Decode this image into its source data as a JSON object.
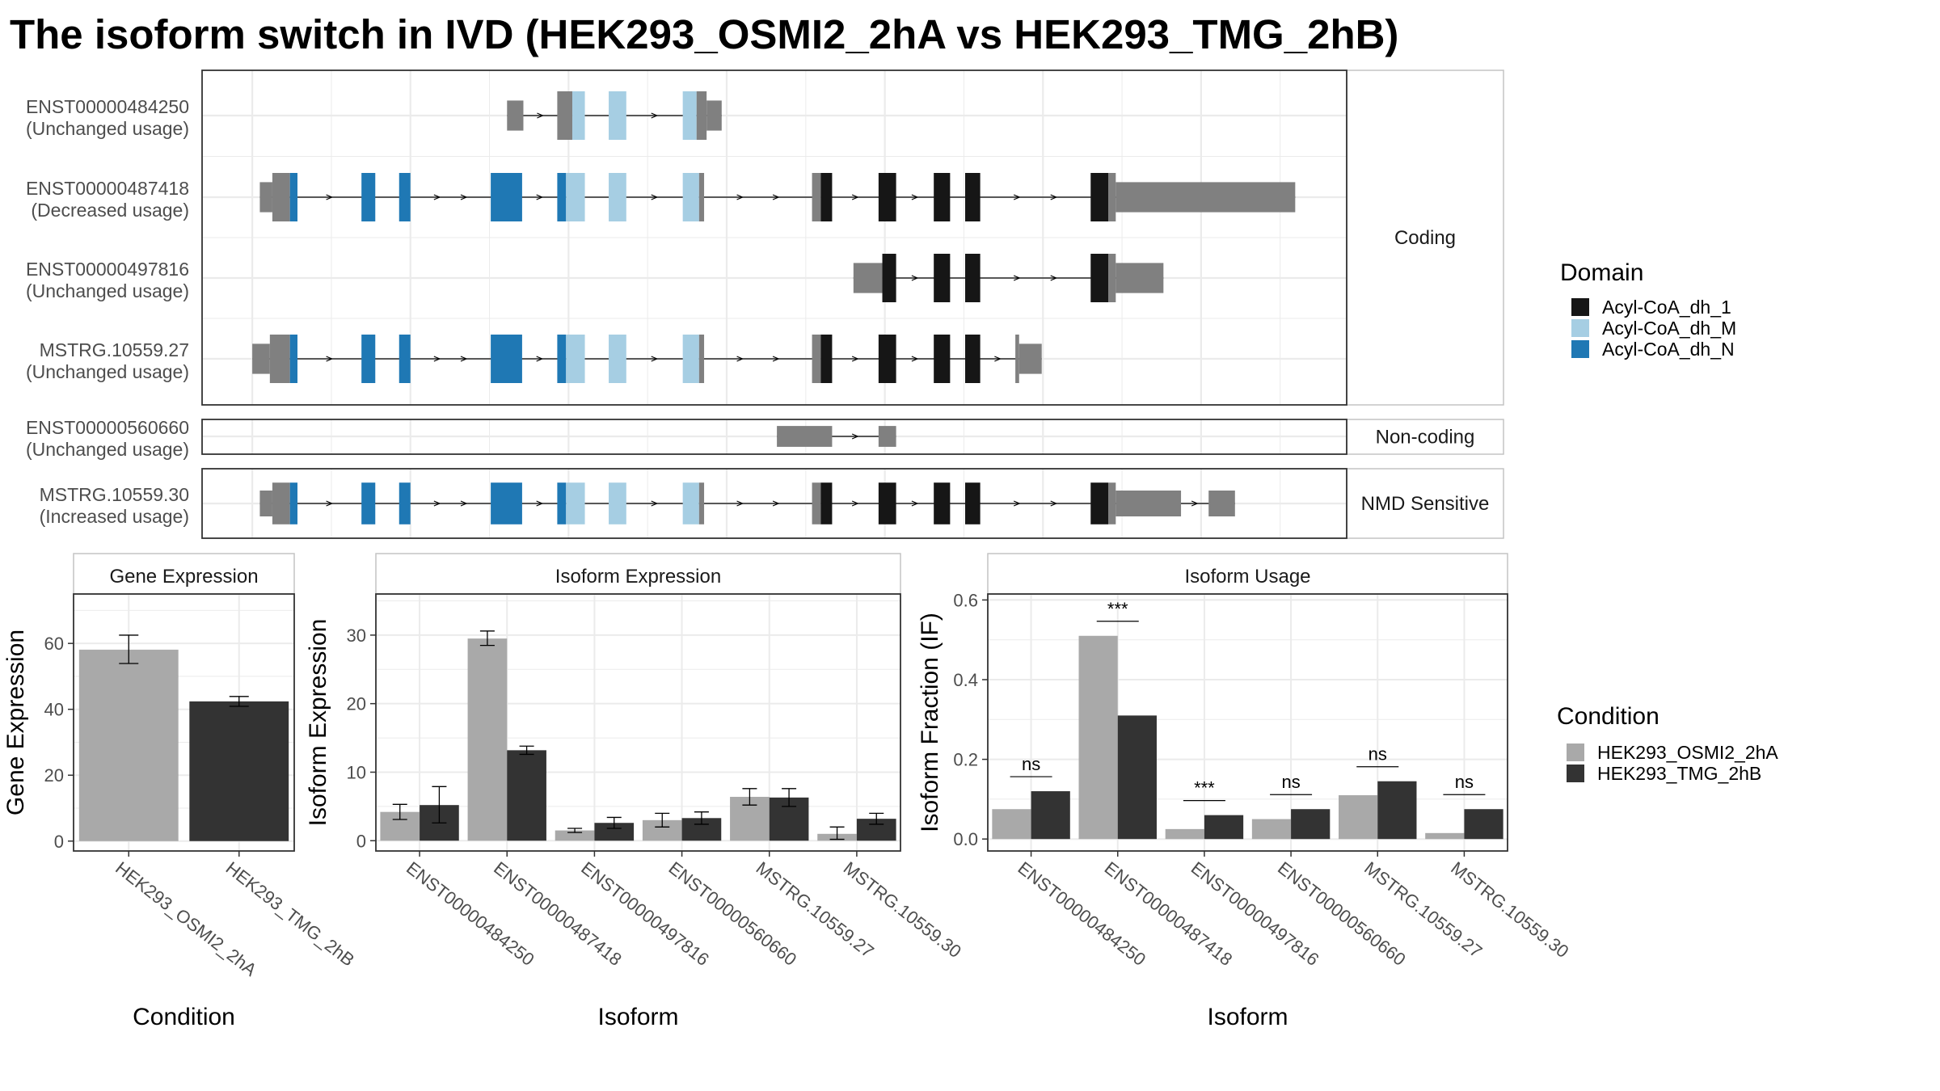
{
  "title": "The isoform switch in IVD (HEK293_OSMI2_2hA vs HEK293_TMG_2hB)",
  "colors": {
    "utr": "#808080",
    "Acyl-CoA_dh_1": "#161616",
    "Acyl-CoA_dh_M": "#a6cee3",
    "Acyl-CoA_dh_N": "#1f78b4",
    "cond1": "#a9a9a9",
    "cond2": "#333333",
    "grid": "#ebebeb",
    "panel_border": "#333333",
    "strip_border": "#c4c4c4"
  },
  "structure": {
    "groups": [
      {
        "label": "Coding",
        "transcripts": [
          {
            "id": "ENST00000484250",
            "status": "(Unchanged usage)",
            "segments": [
              [
                405,
                418,
                "utr"
              ],
              [
                445,
                457,
                "utr"
              ],
              [
                457,
                467,
                "Acyl-CoA_dh_M"
              ],
              [
                486,
                500,
                "Acyl-CoA_dh_M"
              ],
              [
                545,
                556,
                "Acyl-CoA_dh_M"
              ],
              [
                556,
                564,
                "utr"
              ],
              [
                564,
                576,
                "utr"
              ]
            ],
            "thin": [
              [
                405,
                418
              ],
              [
                564,
                576
              ]
            ]
          },
          {
            "id": "ENST00000487418",
            "status": "(Decreased usage)",
            "segments": [
              [
                208,
                218,
                "utr"
              ],
              [
                218,
                232,
                "utr"
              ],
              [
                232,
                238,
                "Acyl-CoA_dh_N"
              ],
              [
                289,
                300,
                "Acyl-CoA_dh_N"
              ],
              [
                319,
                328,
                "Acyl-CoA_dh_N"
              ],
              [
                392,
                417,
                "Acyl-CoA_dh_N"
              ],
              [
                445,
                452,
                "Acyl-CoA_dh_N"
              ],
              [
                452,
                467,
                "Acyl-CoA_dh_M"
              ],
              [
                486,
                500,
                "Acyl-CoA_dh_M"
              ],
              [
                545,
                558,
                "Acyl-CoA_dh_M"
              ],
              [
                558,
                562,
                "utr"
              ],
              [
                648,
                655,
                "utr"
              ],
              [
                655,
                664,
                "Acyl-CoA_dh_1"
              ],
              [
                701,
                715,
                "Acyl-CoA_dh_1"
              ],
              [
                745,
                758,
                "Acyl-CoA_dh_1"
              ],
              [
                770,
                782,
                "Acyl-CoA_dh_1"
              ],
              [
                870,
                884,
                "Acyl-CoA_dh_1"
              ],
              [
                884,
                890,
                "utr"
              ],
              [
                890,
                1033,
                "utr"
              ]
            ],
            "thin": [
              [
                208,
                218
              ],
              [
                890,
                1033
              ]
            ]
          },
          {
            "id": "ENST00000497816",
            "status": "(Unchanged usage)",
            "segments": [
              [
                681,
                704,
                "utr"
              ],
              [
                704,
                715,
                "Acyl-CoA_dh_1"
              ],
              [
                745,
                758,
                "Acyl-CoA_dh_1"
              ],
              [
                770,
                782,
                "Acyl-CoA_dh_1"
              ],
              [
                870,
                884,
                "Acyl-CoA_dh_1"
              ],
              [
                884,
                890,
                "utr"
              ],
              [
                890,
                928,
                "utr"
              ]
            ],
            "thin": [
              [
                681,
                704
              ],
              [
                890,
                928
              ]
            ]
          },
          {
            "id": "MSTRG.10559.27",
            "status": "(Unchanged usage)",
            "segments": [
              [
                202,
                216,
                "utr"
              ],
              [
                216,
                232,
                "utr"
              ],
              [
                232,
                238,
                "Acyl-CoA_dh_N"
              ],
              [
                289,
                300,
                "Acyl-CoA_dh_N"
              ],
              [
                319,
                328,
                "Acyl-CoA_dh_N"
              ],
              [
                392,
                417,
                "Acyl-CoA_dh_N"
              ],
              [
                445,
                452,
                "Acyl-CoA_dh_N"
              ],
              [
                452,
                467,
                "Acyl-CoA_dh_M"
              ],
              [
                486,
                500,
                "Acyl-CoA_dh_M"
              ],
              [
                545,
                558,
                "Acyl-CoA_dh_M"
              ],
              [
                558,
                562,
                "utr"
              ],
              [
                648,
                655,
                "utr"
              ],
              [
                655,
                664,
                "Acyl-CoA_dh_1"
              ],
              [
                701,
                715,
                "Acyl-CoA_dh_1"
              ],
              [
                745,
                758,
                "Acyl-CoA_dh_1"
              ],
              [
                770,
                782,
                "Acyl-CoA_dh_1"
              ],
              [
                810,
                813,
                "utr"
              ],
              [
                813,
                831,
                "utr"
              ]
            ],
            "thin": [
              [
                202,
                216
              ],
              [
                813,
                831
              ]
            ]
          }
        ]
      },
      {
        "label": "Non-coding",
        "transcripts": [
          {
            "id": "ENST00000560660",
            "status": "(Unchanged usage)",
            "segments": [
              [
                620,
                664,
                "utr"
              ],
              [
                701,
                715,
                "utr"
              ]
            ],
            "thin": []
          }
        ]
      },
      {
        "label": "NMD Sensitive",
        "transcripts": [
          {
            "id": "MSTRG.10559.30",
            "status": "(Increased usage)",
            "segments": [
              [
                208,
                218,
                "utr"
              ],
              [
                218,
                232,
                "utr"
              ],
              [
                232,
                238,
                "Acyl-CoA_dh_N"
              ],
              [
                289,
                300,
                "Acyl-CoA_dh_N"
              ],
              [
                319,
                328,
                "Acyl-CoA_dh_N"
              ],
              [
                392,
                417,
                "Acyl-CoA_dh_N"
              ],
              [
                445,
                452,
                "Acyl-CoA_dh_N"
              ],
              [
                452,
                467,
                "Acyl-CoA_dh_M"
              ],
              [
                486,
                500,
                "Acyl-CoA_dh_M"
              ],
              [
                545,
                558,
                "Acyl-CoA_dh_M"
              ],
              [
                558,
                562,
                "utr"
              ],
              [
                648,
                655,
                "utr"
              ],
              [
                655,
                664,
                "Acyl-CoA_dh_1"
              ],
              [
                701,
                715,
                "Acyl-CoA_dh_1"
              ],
              [
                745,
                758,
                "Acyl-CoA_dh_1"
              ],
              [
                770,
                782,
                "Acyl-CoA_dh_1"
              ],
              [
                870,
                884,
                "Acyl-CoA_dh_1"
              ],
              [
                884,
                890,
                "utr"
              ],
              [
                890,
                942,
                "utr"
              ],
              [
                964,
                985,
                "utr"
              ]
            ],
            "thin": [
              [
                208,
                218
              ],
              [
                890,
                942
              ],
              [
                964,
                985
              ]
            ]
          }
        ]
      }
    ]
  },
  "legend_domain": {
    "title": "Domain",
    "items": [
      "Acyl-CoA_dh_1",
      "Acyl-CoA_dh_M",
      "Acyl-CoA_dh_N"
    ]
  },
  "legend_condition": {
    "title": "Condition",
    "items": [
      "HEK293_OSMI2_2hA",
      "HEK293_TMG_2hB"
    ]
  },
  "chart_data": [
    {
      "type": "bar",
      "strip": "Gene Expression",
      "xlabel": "Condition",
      "ylabel": "Gene Expression",
      "categories": [
        "HEK293_OSMI2_2hA",
        "HEK293_TMG_2hB"
      ],
      "values": [
        58.1,
        42.4
      ],
      "errors": [
        [
          53.9,
          62.5
        ],
        [
          40.9,
          43.9
        ]
      ],
      "ylim": [
        -3,
        75
      ],
      "yticks": [
        0,
        20,
        40,
        60
      ]
    },
    {
      "type": "bar",
      "strip": "Isoform Expression",
      "xlabel": "Isoform",
      "ylabel": "Isoform Expression",
      "categories": [
        "ENST00000484250",
        "ENST00000487418",
        "ENST00000497816",
        "ENST00000560660",
        "MSTRG.10559.27",
        "MSTRG.10559.30"
      ],
      "series": [
        {
          "name": "HEK293_OSMI2_2hA",
          "values": [
            4.2,
            29.5,
            1.5,
            3.0,
            6.4,
            1.0
          ],
          "errors": [
            [
              3.1,
              5.3
            ],
            [
              28.5,
              30.6
            ],
            [
              1.2,
              1.8
            ],
            [
              2.0,
              4.0
            ],
            [
              5.2,
              7.6
            ],
            [
              0.2,
              2.0
            ]
          ]
        },
        {
          "name": "HEK293_TMG_2hB",
          "values": [
            5.2,
            13.2,
            2.6,
            3.3,
            6.3,
            3.2
          ],
          "errors": [
            [
              2.6,
              7.9
            ],
            [
              12.6,
              13.8
            ],
            [
              1.8,
              3.4
            ],
            [
              2.4,
              4.2
            ],
            [
              5.0,
              7.6
            ],
            [
              2.4,
              4.0
            ]
          ]
        }
      ],
      "ylim": [
        -1.5,
        36
      ],
      "yticks": [
        0,
        10,
        20,
        30
      ]
    },
    {
      "type": "bar",
      "strip": "Isoform Usage",
      "xlabel": "Isoform",
      "ylabel": "Isoform Fraction (IF)",
      "categories": [
        "ENST00000484250",
        "ENST00000487418",
        "ENST00000497816",
        "ENST00000560660",
        "MSTRG.10559.27",
        "MSTRG.10559.30"
      ],
      "series": [
        {
          "name": "HEK293_OSMI2_2hA",
          "values": [
            0.075,
            0.51,
            0.025,
            0.05,
            0.11,
            0.015
          ]
        },
        {
          "name": "HEK293_TMG_2hB",
          "values": [
            0.12,
            0.31,
            0.06,
            0.075,
            0.145,
            0.075
          ]
        }
      ],
      "significance": [
        "ns",
        "***",
        "***",
        "ns",
        "ns",
        "ns"
      ],
      "ylim": [
        -0.03,
        0.615
      ],
      "yticks": [
        "0.0",
        "0.2",
        "0.4",
        "0.6"
      ]
    }
  ]
}
